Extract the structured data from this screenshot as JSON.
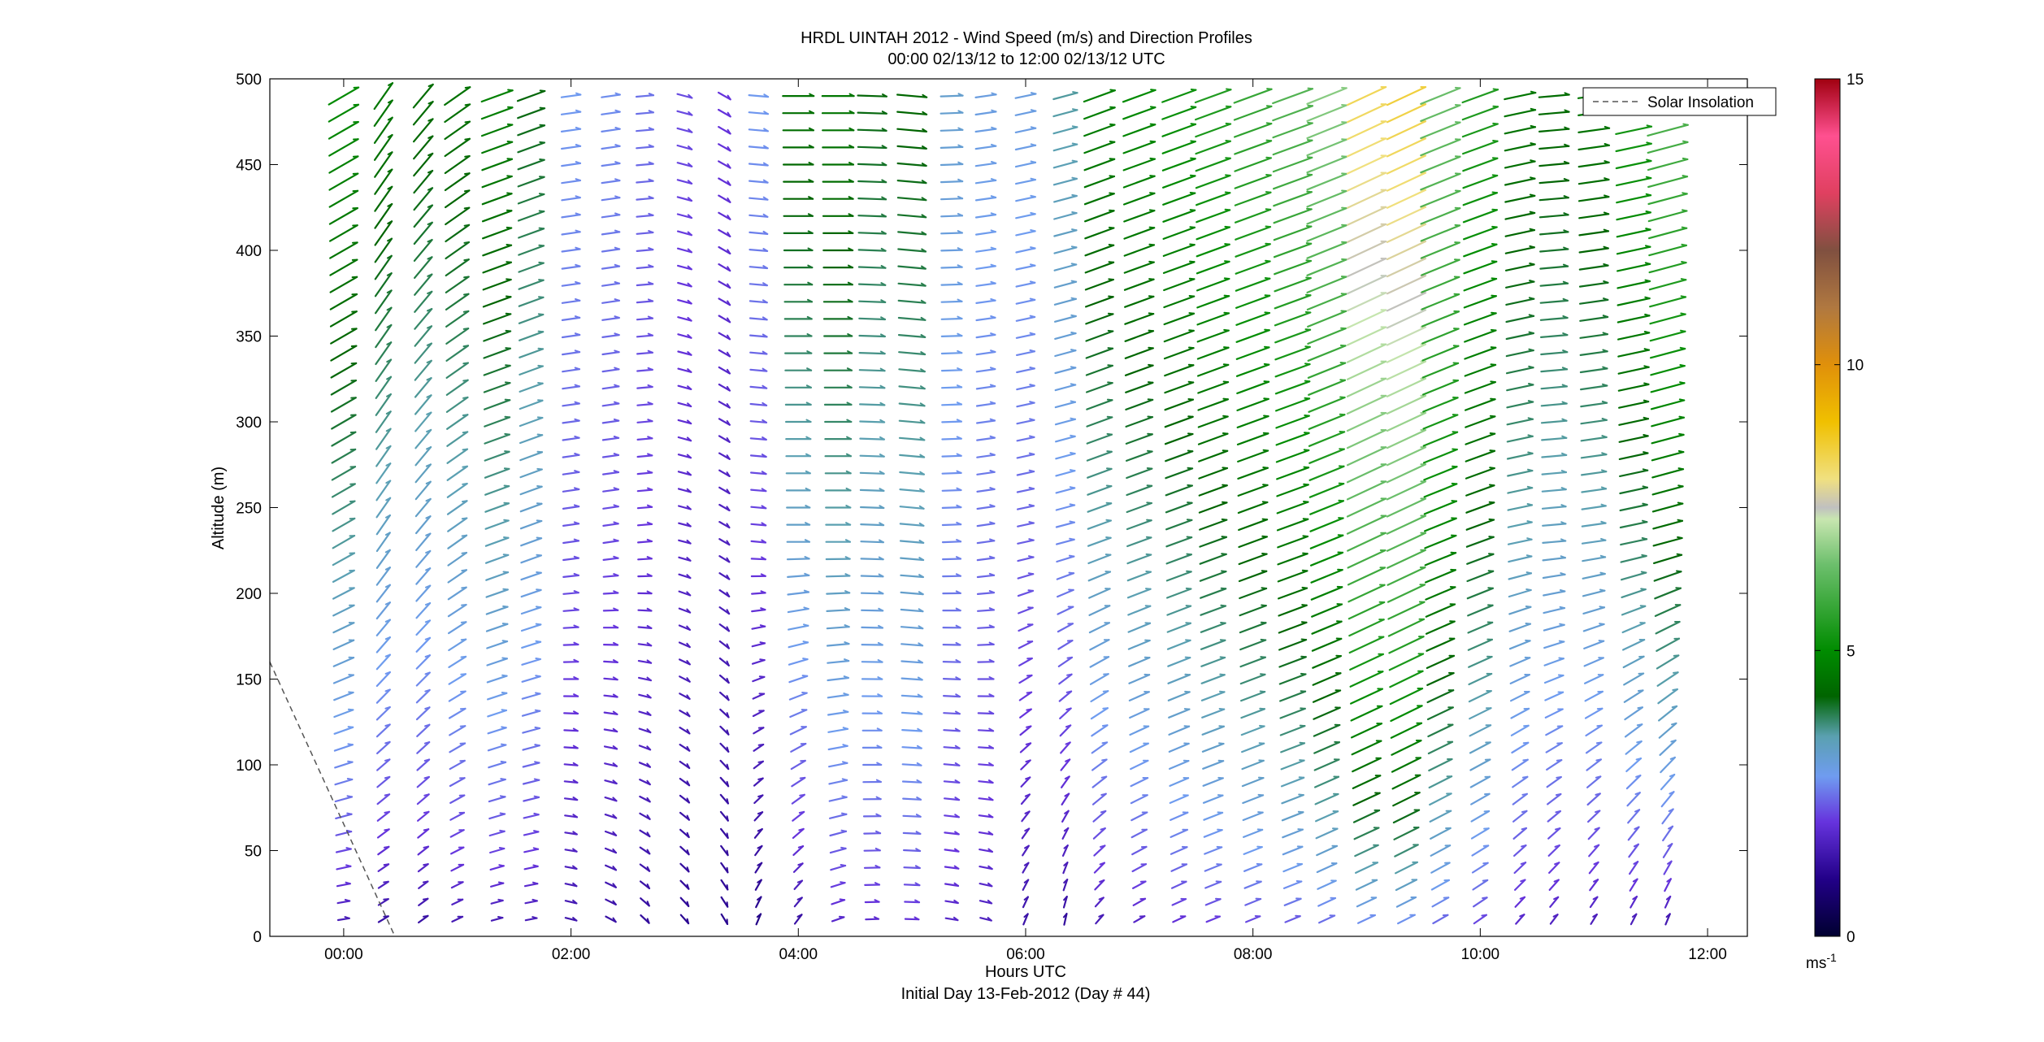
{
  "chart_data": {
    "type": "quiver",
    "title": "HRDL UINTAH 2012 - Wind Speed (m/s) and Direction Profiles",
    "subtitle": "00:00 02/13/12 to 12:00 02/13/12  UTC",
    "xlabel": "Hours UTC",
    "xlabel2": "Initial Day 13-Feb-2012 (Day # 44)",
    "ylabel": "Altitude (m)",
    "xlim": [
      -0.65,
      12.35
    ],
    "ylim": [
      0,
      500
    ],
    "x_ticks": [
      0,
      2,
      4,
      6,
      8,
      10,
      12
    ],
    "x_tick_labels": [
      "00:00",
      "02:00",
      "04:00",
      "06:00",
      "08:00",
      "10:00",
      "12:00"
    ],
    "y_ticks": [
      0,
      50,
      100,
      150,
      200,
      250,
      300,
      350,
      400,
      450,
      500
    ],
    "y_tick_labels": [
      "0",
      "50",
      "100",
      "150",
      "200",
      "250",
      "300",
      "350",
      "400",
      "450",
      "500"
    ],
    "legend": {
      "entries": [
        "Solar Insolation"
      ],
      "placement": "top-right"
    },
    "colorbar": {
      "range": [
        0,
        15
      ],
      "ticks": [
        0,
        5,
        10,
        15
      ],
      "tick_labels": [
        "0",
        "5",
        "10",
        "15"
      ],
      "unit_base": "ms",
      "unit_exp": "-1",
      "stops": [
        {
          "v": 0.0,
          "c": "#000030"
        },
        {
          "v": 1.0,
          "c": "#220088"
        },
        {
          "v": 2.0,
          "c": "#6633dd"
        },
        {
          "v": 2.8,
          "c": "#6f9cf0"
        },
        {
          "v": 3.5,
          "c": "#5aa0b0"
        },
        {
          "v": 4.2,
          "c": "#006400"
        },
        {
          "v": 5.0,
          "c": "#008c00"
        },
        {
          "v": 6.5,
          "c": "#6cbf6c"
        },
        {
          "v": 7.3,
          "c": "#c8e6b0"
        },
        {
          "v": 7.5,
          "c": "#c0c0c0"
        },
        {
          "v": 8.0,
          "c": "#f0e080"
        },
        {
          "v": 9.0,
          "c": "#f0c000"
        },
        {
          "v": 10.0,
          "c": "#e0900a"
        },
        {
          "v": 11.0,
          "c": "#b07840"
        },
        {
          "v": 12.0,
          "c": "#805040"
        },
        {
          "v": 13.0,
          "c": "#e04060"
        },
        {
          "v": 14.0,
          "c": "#ff5090"
        },
        {
          "v": 15.0,
          "c": "#a00010"
        }
      ]
    },
    "solar_insolation_line": [
      [
        -0.65,
        160
      ],
      [
        0.45,
        0
      ]
    ],
    "altitude_levels": [
      10,
      20,
      30,
      40,
      50,
      60,
      70,
      80,
      90,
      100,
      110,
      120,
      130,
      140,
      150,
      160,
      170,
      180,
      190,
      200,
      210,
      220,
      230,
      240,
      250,
      260,
      270,
      280,
      290,
      300,
      310,
      320,
      330,
      340,
      350,
      360,
      370,
      380,
      390,
      400,
      410,
      420,
      430,
      440,
      450,
      460,
      470,
      480,
      490
    ],
    "profiles": [
      {
        "t": 0.0,
        "s0": 1.2,
        "s500": 5.0,
        "d0": 262,
        "d500": 240,
        "cut": 500
      },
      {
        "t": 0.35,
        "s0": 1.0,
        "s500": 4.6,
        "d0": 240,
        "d500": 215,
        "cut": 500
      },
      {
        "t": 0.7,
        "s0": 1.0,
        "s500": 4.4,
        "d0": 235,
        "d500": 220,
        "cut": 500
      },
      {
        "t": 1.0,
        "s0": 1.2,
        "s500": 4.5,
        "d0": 245,
        "d500": 235,
        "cut": 500
      },
      {
        "t": 1.35,
        "s0": 1.2,
        "s500": 4.8,
        "d0": 255,
        "d500": 250,
        "cut": 500
      },
      {
        "t": 1.65,
        "s0": 1.3,
        "s500": 4.2,
        "d0": 260,
        "d500": 250,
        "cut": 500
      },
      {
        "t": 2.0,
        "s0": 1.3,
        "s500": 2.8,
        "d0": 285,
        "d500": 262,
        "cut": 500
      },
      {
        "t": 2.35,
        "s0": 1.2,
        "s500": 2.7,
        "d0": 300,
        "d500": 262,
        "cut": 500
      },
      {
        "t": 2.65,
        "s0": 1.1,
        "s500": 2.5,
        "d0": 315,
        "d500": 265,
        "cut": 500
      },
      {
        "t": 3.0,
        "s0": 1.0,
        "s500": 2.2,
        "d0": 320,
        "d500": 285,
        "cut": 500
      },
      {
        "t": 3.35,
        "s0": 1.0,
        "s500": 2.0,
        "d0": 330,
        "d500": 300,
        "cut": 500
      },
      {
        "t": 3.65,
        "s0": 0.8,
        "s500": 2.8,
        "d0": 200,
        "d500": 275,
        "cut": 500
      },
      {
        "t": 4.0,
        "s0": 1.0,
        "s500": 4.5,
        "d0": 215,
        "d500": 270,
        "cut": 500
      },
      {
        "t": 4.35,
        "s0": 1.5,
        "s500": 4.6,
        "d0": 250,
        "d500": 270,
        "cut": 500
      },
      {
        "t": 4.65,
        "s0": 1.6,
        "s500": 4.2,
        "d0": 268,
        "d500": 272,
        "cut": 500
      },
      {
        "t": 5.0,
        "s0": 1.7,
        "s500": 4.3,
        "d0": 272,
        "d500": 275,
        "cut": 500
      },
      {
        "t": 5.35,
        "s0": 1.6,
        "s500": 3.2,
        "d0": 280,
        "d500": 268,
        "cut": 500
      },
      {
        "t": 5.65,
        "s0": 1.5,
        "s500": 3.0,
        "d0": 285,
        "d500": 262,
        "cut": 500
      },
      {
        "t": 6.0,
        "s0": 1.2,
        "s500": 3.0,
        "d0": 200,
        "d500": 258,
        "cut": 500
      },
      {
        "t": 6.35,
        "s0": 1.0,
        "s500": 3.6,
        "d0": 190,
        "d500": 255,
        "cut": 500
      },
      {
        "t": 6.65,
        "s0": 1.2,
        "s500": 4.8,
        "d0": 220,
        "d500": 250,
        "cut": 500
      },
      {
        "t": 7.0,
        "s0": 1.4,
        "s500": 5.0,
        "d0": 240,
        "d500": 250,
        "cut": 500
      },
      {
        "t": 7.35,
        "s0": 1.6,
        "s500": 5.2,
        "d0": 245,
        "d500": 250,
        "cut": 500
      },
      {
        "t": 7.65,
        "s0": 1.7,
        "s500": 5.5,
        "d0": 248,
        "d500": 250,
        "cut": 500
      },
      {
        "t": 8.0,
        "s0": 1.8,
        "s500": 5.8,
        "d0": 248,
        "d500": 250,
        "cut": 500
      },
      {
        "t": 8.35,
        "s0": 1.9,
        "s500": 6.2,
        "d0": 248,
        "d500": 250,
        "cut": 500
      },
      {
        "t": 8.65,
        "s0": 2.0,
        "s500": 6.8,
        "d0": 245,
        "d500": 248,
        "cut": 500
      },
      {
        "t": 9.0,
        "s0": 2.1,
        "s500": 8.4,
        "d0": 245,
        "d500": 245,
        "cut": 500
      },
      {
        "t": 9.35,
        "s0": 2.1,
        "s500": 8.6,
        "d0": 243,
        "d500": 245,
        "cut": 500
      },
      {
        "t": 9.65,
        "s0": 2.0,
        "s500": 6.5,
        "d0": 240,
        "d500": 248,
        "cut": 500
      },
      {
        "t": 10.0,
        "s0": 1.8,
        "s500": 5.5,
        "d0": 235,
        "d500": 250,
        "cut": 500
      },
      {
        "t": 10.35,
        "s0": 1.5,
        "s500": 4.6,
        "d0": 220,
        "d500": 258,
        "cut": 500
      },
      {
        "t": 10.65,
        "s0": 1.4,
        "s500": 4.4,
        "d0": 215,
        "d500": 265,
        "cut": 500
      },
      {
        "t": 11.0,
        "s0": 1.3,
        "s500": 4.6,
        "d0": 210,
        "d500": 262,
        "cut": 500
      },
      {
        "t": 11.35,
        "s0": 1.2,
        "s500": 5.4,
        "d0": 205,
        "d500": 258,
        "cut": 470
      },
      {
        "t": 11.65,
        "s0": 1.0,
        "s500": 6.2,
        "d0": 200,
        "d500": 255,
        "cut": 470
      }
    ]
  }
}
